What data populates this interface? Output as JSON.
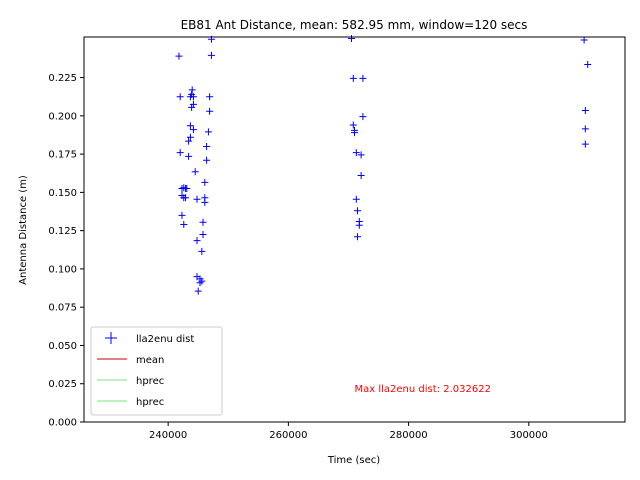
{
  "chart_data": {
    "type": "scatter",
    "title": "EB81 Ant Distance, mean: 582.95 mm, window=120 secs",
    "xlabel": "Time (sec)",
    "ylabel": "Antenna Distance (m)",
    "xlim": [
      226000,
      316000
    ],
    "ylim": [
      0.0,
      0.2515
    ],
    "xticks": [
      240000,
      260000,
      280000,
      300000
    ],
    "xtick_labels": [
      "240000",
      "260000",
      "280000",
      "300000"
    ],
    "yticks": [
      0.0,
      0.025,
      0.05,
      0.075,
      0.1,
      0.125,
      0.15,
      0.175,
      0.2,
      0.225
    ],
    "ytick_labels": [
      "0.000",
      "0.025",
      "0.050",
      "0.075",
      "0.100",
      "0.125",
      "0.150",
      "0.175",
      "0.200",
      "0.225"
    ],
    "grid": false,
    "legend_position": "lower-left",
    "series": [
      {
        "name": "lla2enu dist",
        "color": "#0000ff",
        "marker": "plus",
        "points": [
          [
            241800,
            0.239
          ],
          [
            242000,
            0.2125
          ],
          [
            242000,
            0.176
          ],
          [
            242300,
            0.1525
          ],
          [
            242300,
            0.148
          ],
          [
            242300,
            0.135
          ],
          [
            242600,
            0.153
          ],
          [
            242600,
            0.1465
          ],
          [
            242600,
            0.129
          ],
          [
            242900,
            0.1525
          ],
          [
            242900,
            0.1465
          ],
          [
            243100,
            0.1525
          ],
          [
            243400,
            0.1835
          ],
          [
            243400,
            0.1735
          ],
          [
            243700,
            0.186
          ],
          [
            243700,
            0.1935
          ],
          [
            243700,
            0.2125
          ],
          [
            243900,
            0.2055
          ],
          [
            243900,
            0.214
          ],
          [
            244000,
            0.217
          ],
          [
            244200,
            0.2125
          ],
          [
            244200,
            0.191
          ],
          [
            244200,
            0.2075
          ],
          [
            244500,
            0.1635
          ],
          [
            244800,
            0.1455
          ],
          [
            244800,
            0.1185
          ],
          [
            244800,
            0.095
          ],
          [
            245000,
            0.0855
          ],
          [
            245300,
            0.0935
          ],
          [
            245300,
            0.091
          ],
          [
            245600,
            0.092
          ],
          [
            245600,
            0.1115
          ],
          [
            245800,
            0.1225
          ],
          [
            245800,
            0.1305
          ],
          [
            246100,
            0.1435
          ],
          [
            246100,
            0.1465
          ],
          [
            246100,
            0.1565
          ],
          [
            246400,
            0.171
          ],
          [
            246400,
            0.18
          ],
          [
            246700,
            0.1895
          ],
          [
            246900,
            0.203
          ],
          [
            246900,
            0.2125
          ],
          [
            247200,
            0.2395
          ],
          [
            247200,
            0.25
          ],
          [
            270500,
            0.2505
          ],
          [
            270800,
            0.2245
          ],
          [
            270800,
            0.194
          ],
          [
            271000,
            0.1905
          ],
          [
            271000,
            0.189
          ],
          [
            271300,
            0.176
          ],
          [
            271300,
            0.1455
          ],
          [
            271500,
            0.138
          ],
          [
            271800,
            0.131
          ],
          [
            271800,
            0.1285
          ],
          [
            271500,
            0.121
          ],
          [
            272100,
            0.1745
          ],
          [
            272100,
            0.161
          ],
          [
            272400,
            0.2245
          ],
          [
            272400,
            0.1995
          ],
          [
            309200,
            0.2495
          ],
          [
            309400,
            0.2035
          ],
          [
            309400,
            0.1915
          ],
          [
            309400,
            0.1815
          ],
          [
            309800,
            0.2335
          ]
        ]
      },
      {
        "name": "mean",
        "color": "#cc0000",
        "marker": "line"
      },
      {
        "name": "hprec",
        "color": "#7fe07f",
        "marker": "line"
      },
      {
        "name": "hprec",
        "color": "#7fe07f",
        "marker": "line"
      }
    ],
    "annotation": {
      "text": "Max lla2enu dist: 2.032622",
      "color": "#ff0000",
      "x": 271000,
      "y": 0.0195
    }
  }
}
